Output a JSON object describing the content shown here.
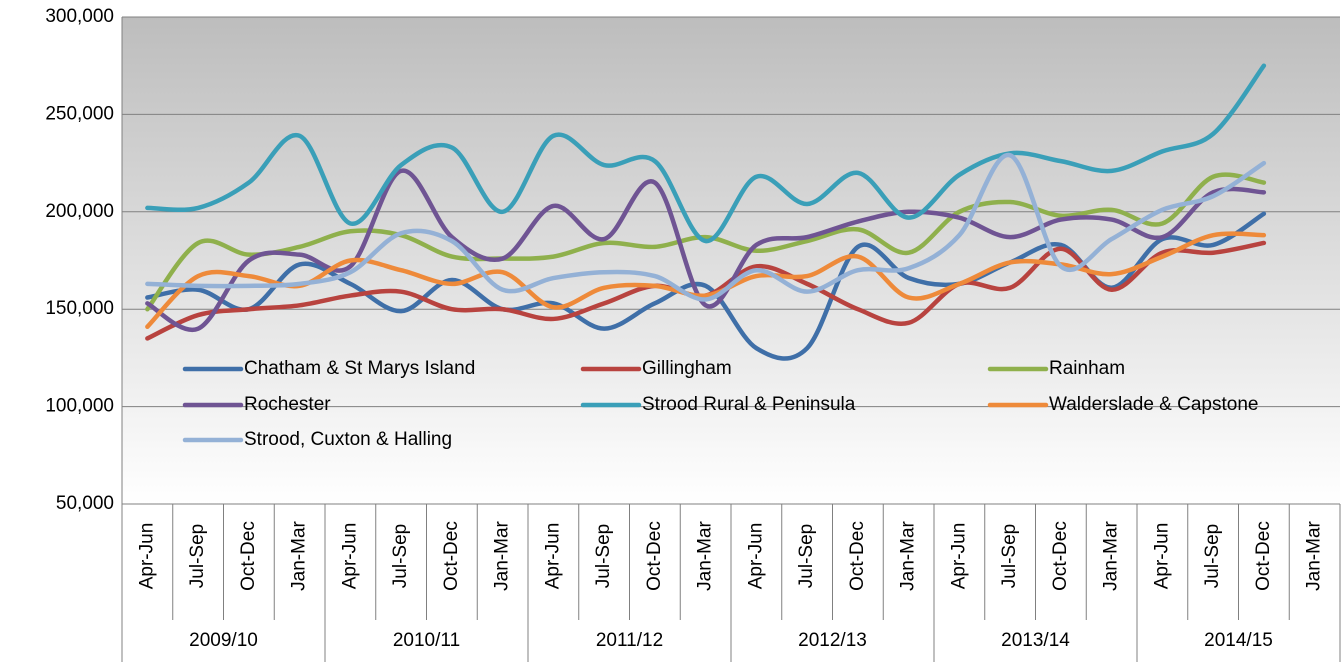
{
  "chart_data": {
    "type": "line",
    "categories": [
      "Apr-Jun",
      "Jul-Sep",
      "Oct-Dec",
      "Jan-Mar",
      "Apr-Jun",
      "Jul-Sep",
      "Oct-Dec",
      "Jan-Mar",
      "Apr-Jun",
      "Jul-Sep",
      "Oct-Dec",
      "Jan-Mar",
      "Apr-Jun",
      "Jul-Sep",
      "Oct-Dec",
      "Jan-Mar",
      "Apr-Jun",
      "Jul-Sep",
      "Oct-Dec",
      "Jan-Mar",
      "Apr-Jun",
      "Jul-Sep",
      "Oct-Dec",
      "Jan-Mar"
    ],
    "groups": [
      "2009/10",
      "2010/11",
      "2011/12",
      "2012/13",
      "2013/14",
      "2014/15"
    ],
    "ylim": [
      50000,
      300000
    ],
    "yticks": [
      {
        "value": 50000,
        "label": "50,000"
      },
      {
        "value": 100000,
        "label": "100,000"
      },
      {
        "value": 150000,
        "label": "150,000"
      },
      {
        "value": 200000,
        "label": "200,000"
      },
      {
        "value": 250000,
        "label": "250,000"
      },
      {
        "value": 300000,
        "label": "300,000"
      }
    ],
    "grid": true,
    "smooth": true,
    "legend": "inside",
    "series": [
      {
        "name": "Chatham & St Marys Island",
        "color": "#3f6fa8",
        "values": [
          156000,
          160000,
          150000,
          173000,
          163000,
          149000,
          165000,
          150000,
          153000,
          140000,
          153000,
          162000,
          130000,
          130000,
          182000,
          166000,
          163000,
          174000,
          183000,
          161000,
          186000,
          183000,
          199000,
          null
        ]
      },
      {
        "name": "Gillingham",
        "color": "#b8433f",
        "values": [
          135000,
          147000,
          150000,
          152000,
          157000,
          159000,
          150000,
          150000,
          145000,
          153000,
          162000,
          157000,
          172000,
          163000,
          150000,
          143000,
          163000,
          161000,
          181000,
          160000,
          179000,
          179000,
          184000,
          null
        ]
      },
      {
        "name": "Rainham",
        "color": "#8fb04c",
        "values": [
          150000,
          184000,
          178000,
          182000,
          190000,
          188000,
          177000,
          176000,
          177000,
          184000,
          182000,
          187000,
          180000,
          185000,
          191000,
          179000,
          200000,
          205000,
          198000,
          201000,
          194000,
          218000,
          215000,
          null
        ]
      },
      {
        "name": "Rochester",
        "color": "#6f5493",
        "values": [
          153000,
          140000,
          175000,
          178000,
          172000,
          221000,
          187000,
          176000,
          203000,
          186000,
          215000,
          152000,
          183000,
          187000,
          195000,
          200000,
          197000,
          187000,
          196000,
          196000,
          187000,
          210000,
          210000,
          null
        ]
      },
      {
        "name": "Strood Rural & Peninsula",
        "color": "#3a9fb8",
        "values": [
          202000,
          202000,
          215000,
          239000,
          194000,
          224000,
          233000,
          200000,
          239000,
          224000,
          226000,
          185000,
          218000,
          204000,
          220000,
          197000,
          219000,
          230000,
          226000,
          221000,
          231000,
          240000,
          275000,
          null
        ]
      },
      {
        "name": "Walderslade & Capstone",
        "color": "#ee8a3a",
        "values": [
          141000,
          167000,
          167000,
          162000,
          175000,
          170000,
          163000,
          169000,
          151000,
          161000,
          162000,
          157000,
          167000,
          167000,
          177000,
          156000,
          163000,
          174000,
          173000,
          168000,
          177000,
          188000,
          188000,
          null
        ]
      },
      {
        "name": "Strood, Cuxton & Halling",
        "color": "#94b1d6",
        "values": [
          163000,
          162000,
          162000,
          163000,
          169000,
          189000,
          185000,
          160000,
          166000,
          169000,
          167000,
          155000,
          170000,
          159000,
          170000,
          171000,
          188000,
          229000,
          172000,
          186000,
          201000,
          208000,
          225000,
          null
        ]
      }
    ]
  }
}
